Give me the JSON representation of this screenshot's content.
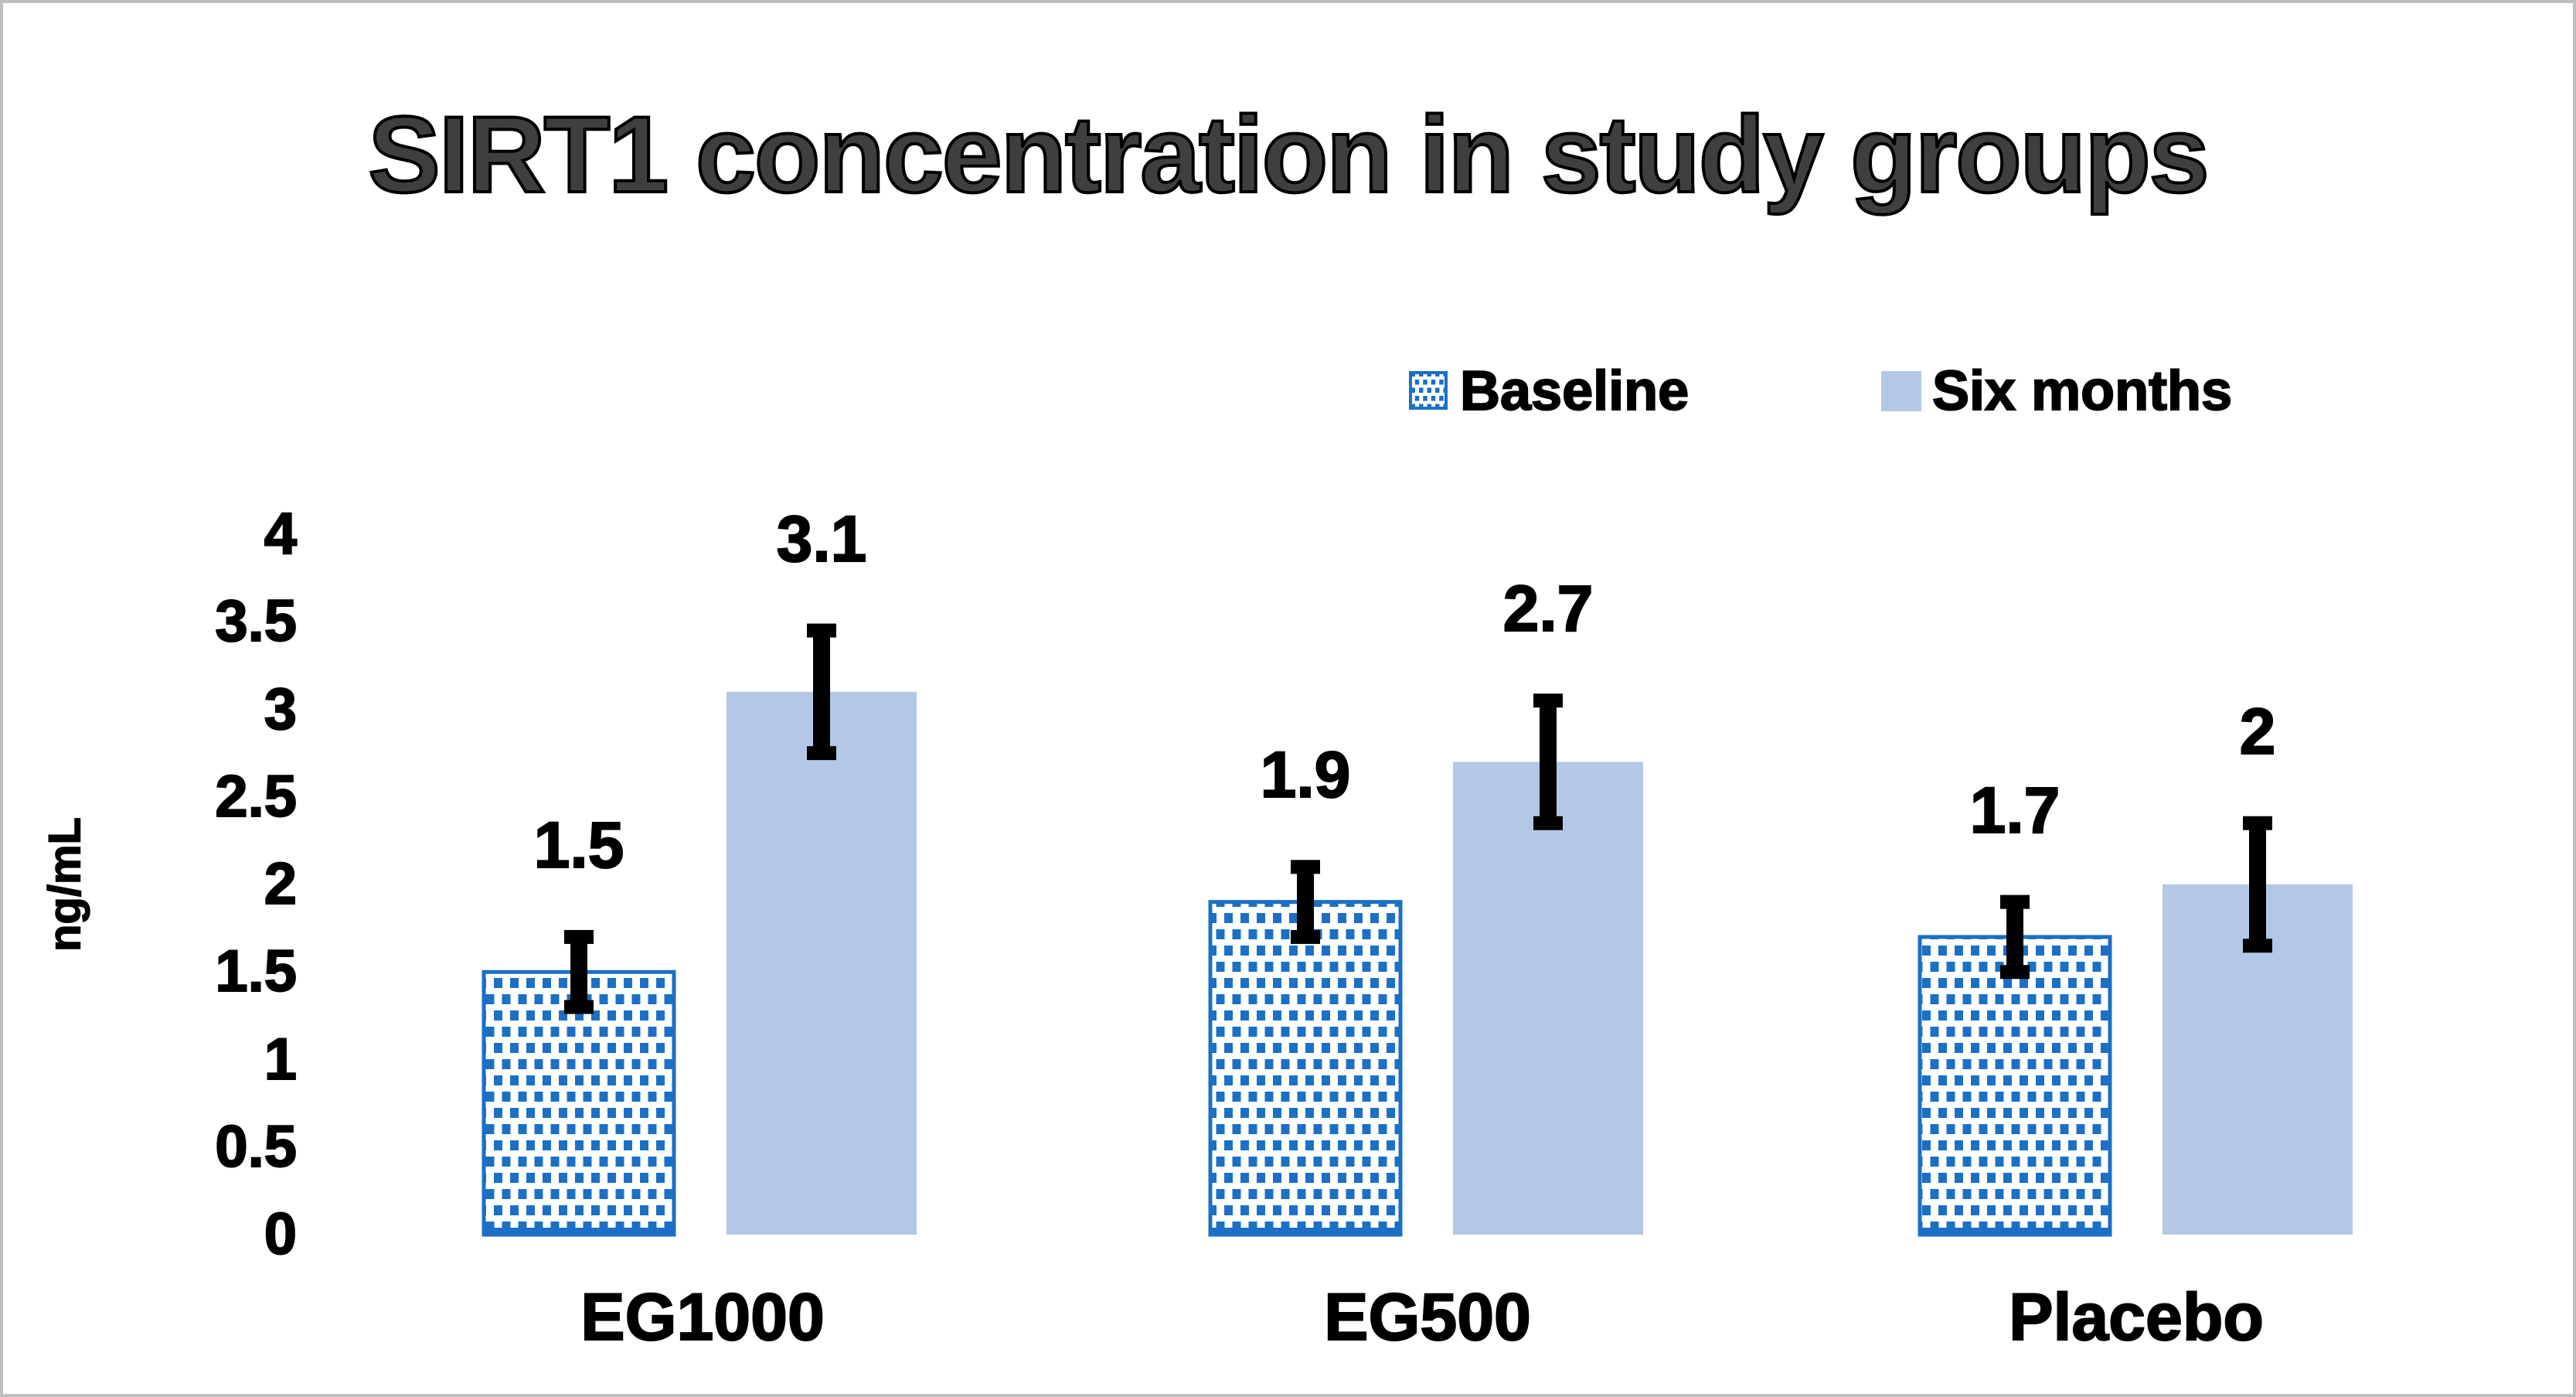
{
  "title": "SIRT1 concentration in study groups",
  "legend": [
    {
      "label": "Baseline",
      "swatch": "dotted"
    },
    {
      "label": "Six months",
      "swatch": "solid"
    }
  ],
  "colors": {
    "pattern_blue": "#1B70C5",
    "solid_blue": "#B4C7E7",
    "error_bar": "#000000",
    "title_fill": "#3F3F3F",
    "frame_border": "#BFBFBF",
    "text": "#000000"
  },
  "chart_data": {
    "type": "bar",
    "title": "SIRT1 concentration in study groups",
    "categories": [
      "EG1000",
      "EG500",
      "Placebo"
    ],
    "series": [
      {
        "name": "Baseline",
        "style": "dotted",
        "values": [
          1.5,
          1.9,
          1.7
        ],
        "errors": [
          0.2,
          0.2,
          0.2
        ]
      },
      {
        "name": "Six months",
        "style": "solid",
        "values": [
          3.1,
          2.7,
          2.0
        ],
        "errors": [
          0.35,
          0.35,
          0.35
        ]
      }
    ],
    "data_labels": [
      [
        "1.5",
        "1.9",
        "1.7"
      ],
      [
        "3.1",
        "2.7",
        "2"
      ]
    ],
    "ylabel": "ng/mL",
    "yticks": [
      "0",
      "0.5",
      "1",
      "1.5",
      "2",
      "2.5",
      "3",
      "3.5",
      "4"
    ],
    "ylim": [
      0,
      4
    ],
    "grid": false,
    "error_bars": true,
    "legend_position": "top-right"
  }
}
